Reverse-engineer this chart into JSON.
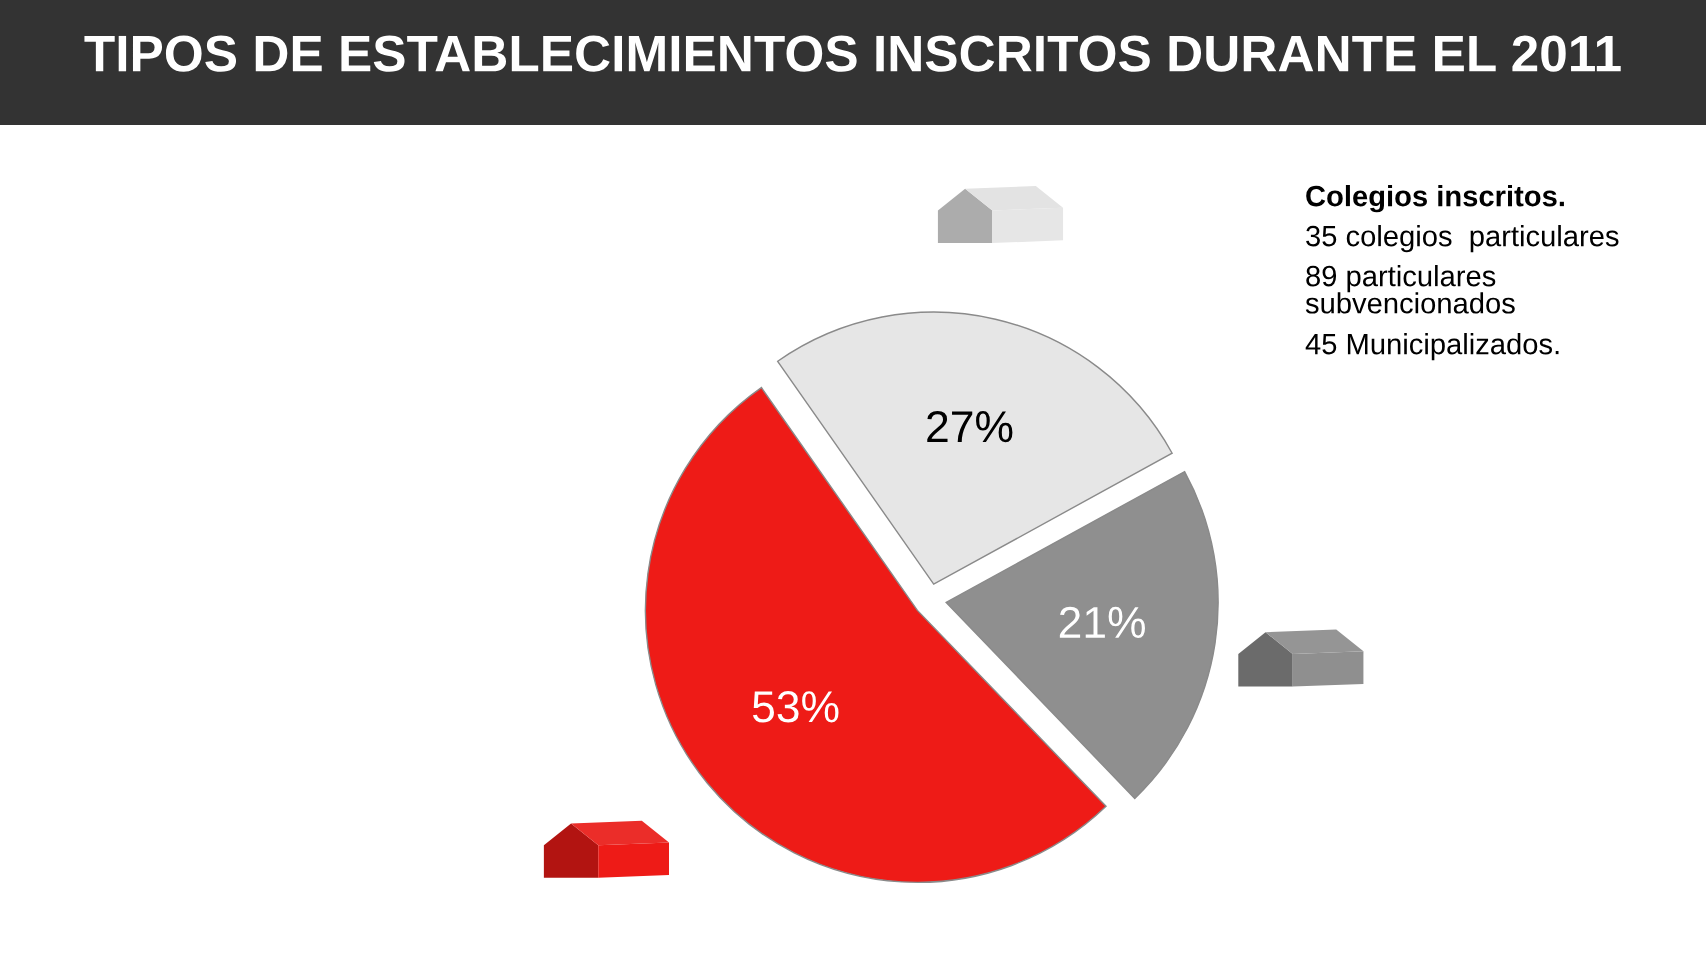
{
  "chart_data": {
    "type": "pie",
    "title": "TIPOS DE ESTABLECIMIENTOS INSCRITOS DURANTE EL 2011",
    "categories": [
      null,
      null,
      null
    ],
    "values": [
      27,
      21,
      53
    ],
    "colors": [
      "#e6e6e6",
      "#8f8f8f",
      "#ee1b17"
    ],
    "value_labels": [
      "27%",
      "21%",
      "53%"
    ],
    "annotations": [
      "Colegios inscritos.",
      "35 colegios  particulares",
      "89 particulares subvencionados",
      "45 Municipalizados."
    ]
  }
}
